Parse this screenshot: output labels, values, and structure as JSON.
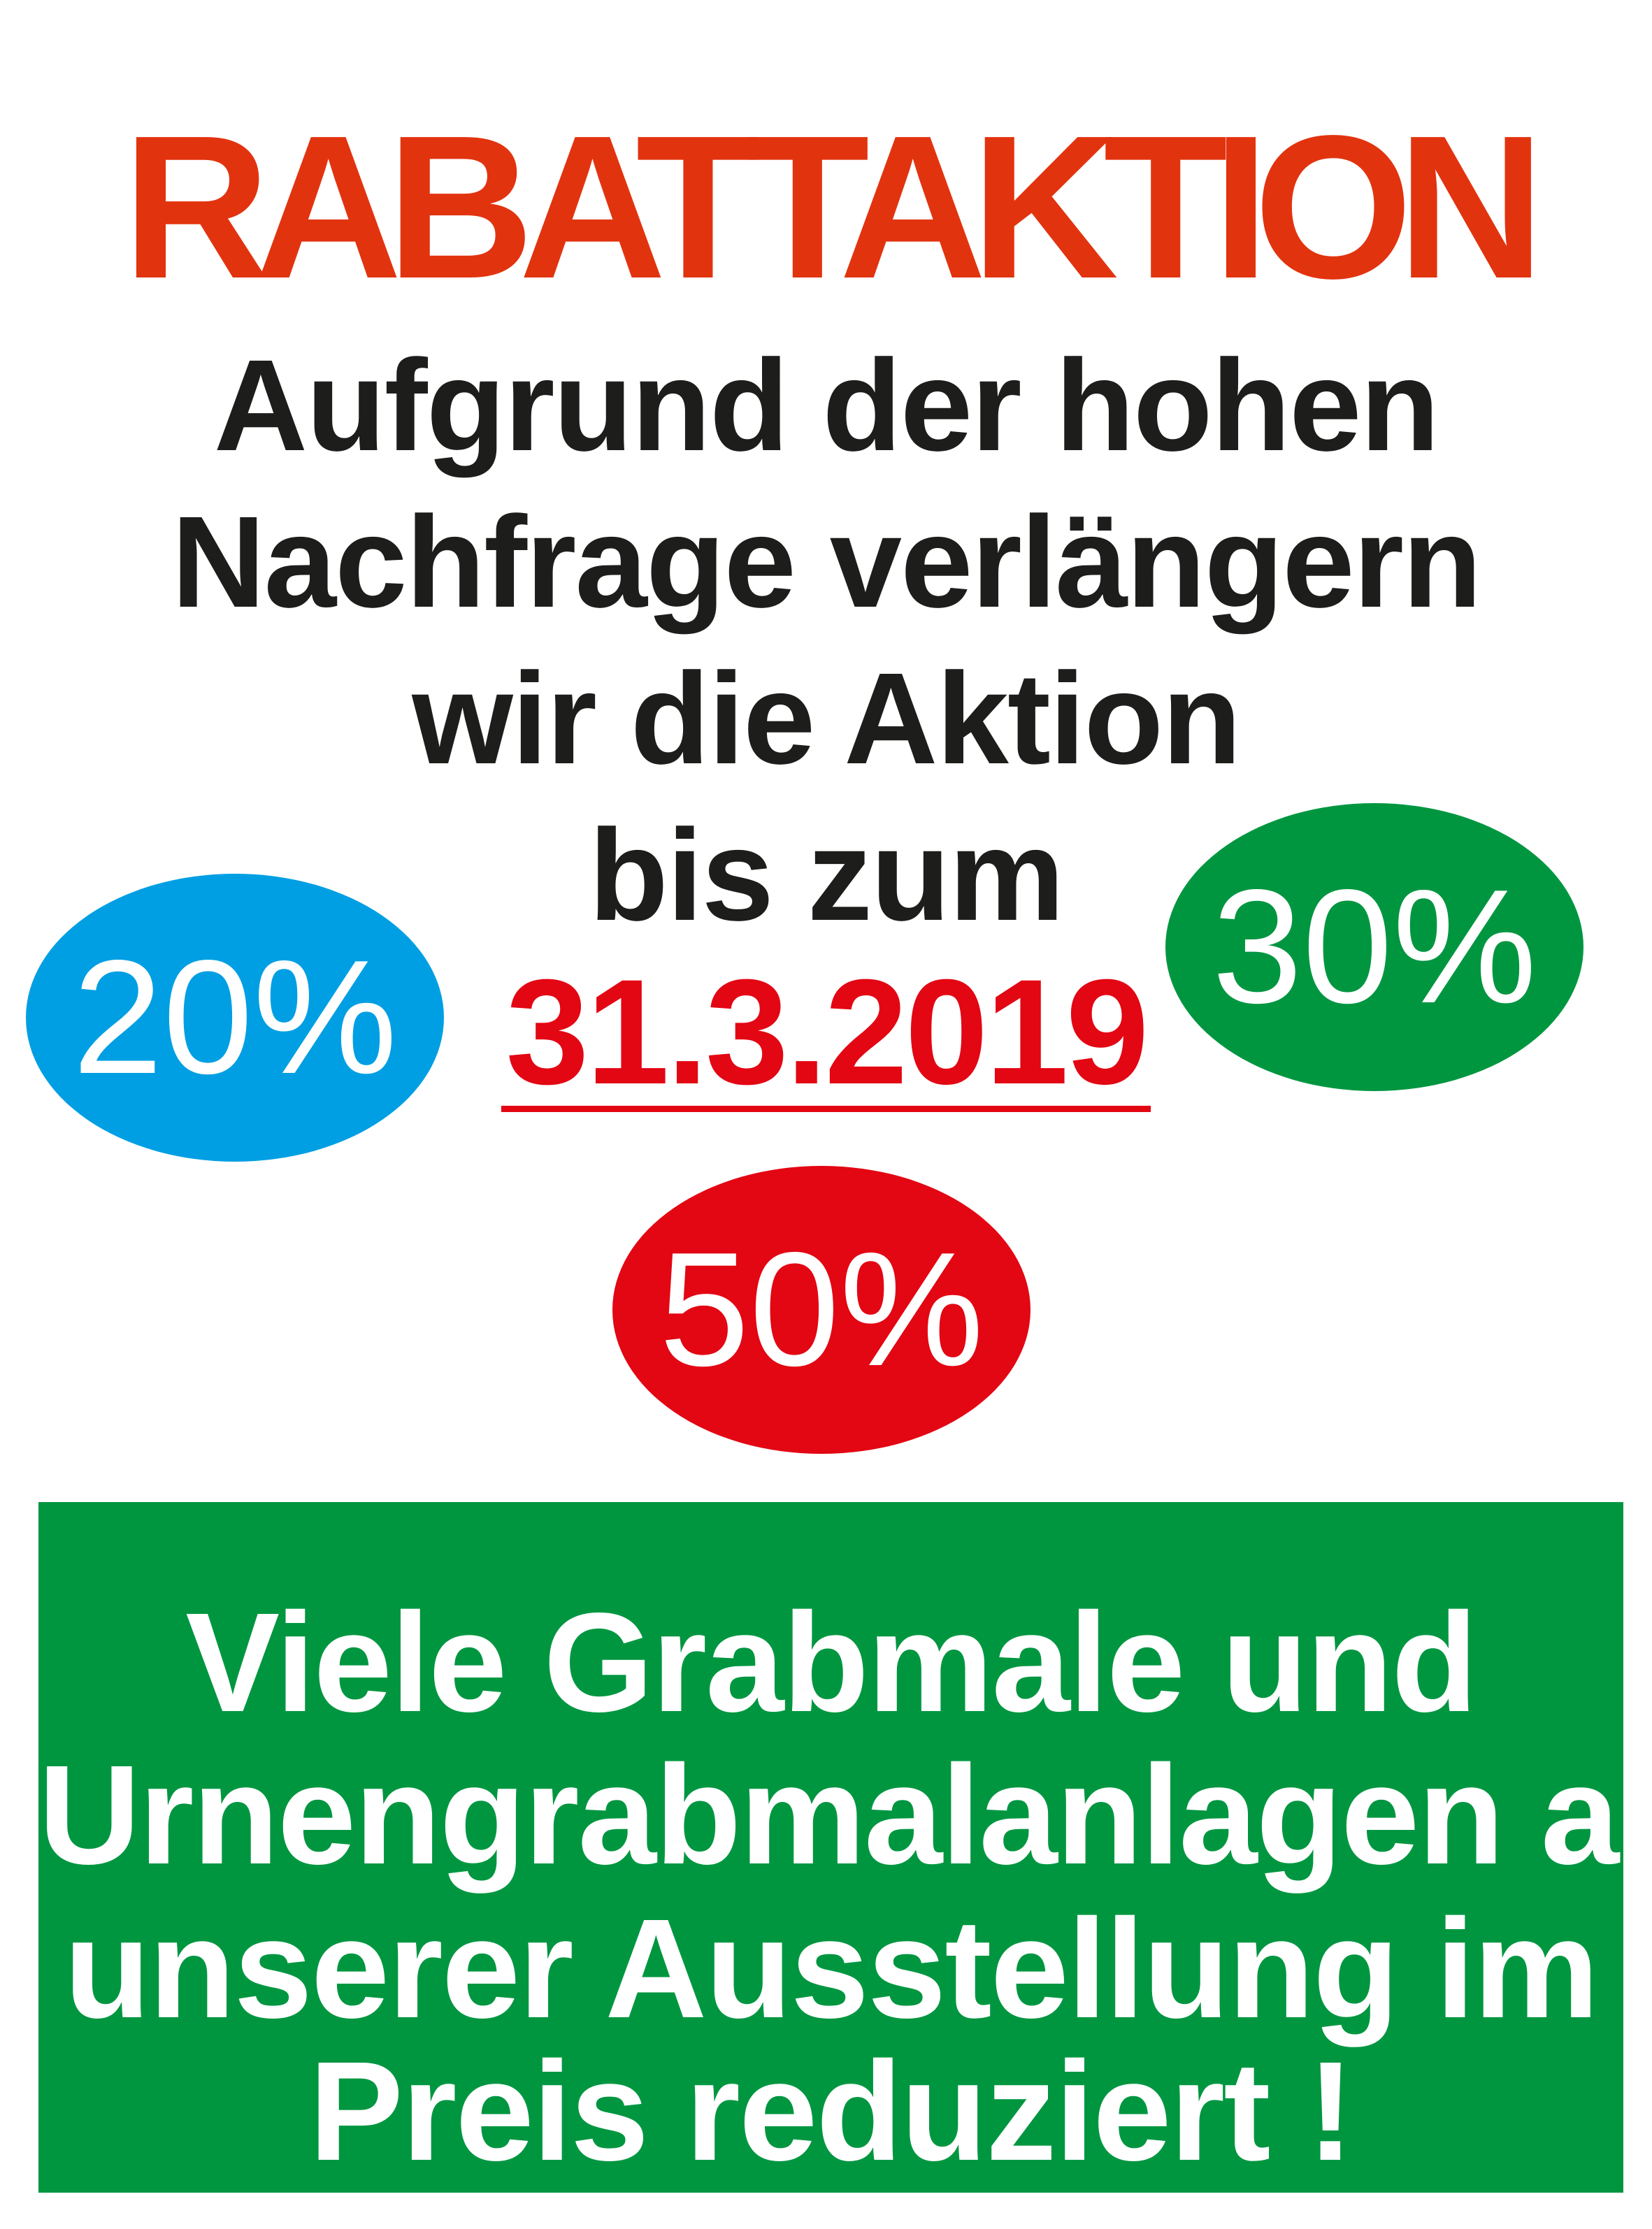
{
  "title": "RABATTAKTION",
  "announcement": {
    "lines": [
      "Aufgrund der hohen",
      "Nachfrage verlängern",
      "wir die Aktion",
      "bis zum"
    ],
    "date": "31.3.2019"
  },
  "discounts": [
    {
      "label": "20%",
      "color": "#009fe3"
    },
    {
      "label": "30%",
      "color": "#009640"
    },
    {
      "label": "50%",
      "color": "#e30613"
    }
  ],
  "info_box": {
    "color": "#009640",
    "lines": [
      "Viele Grabmale und",
      "Urnengrabmalanlagen aus",
      "unserer Ausstellung im",
      "Preis reduziert !"
    ]
  },
  "colors": {
    "title": "#e2330f",
    "text": "#1d1d1b",
    "date": "#e30613"
  }
}
